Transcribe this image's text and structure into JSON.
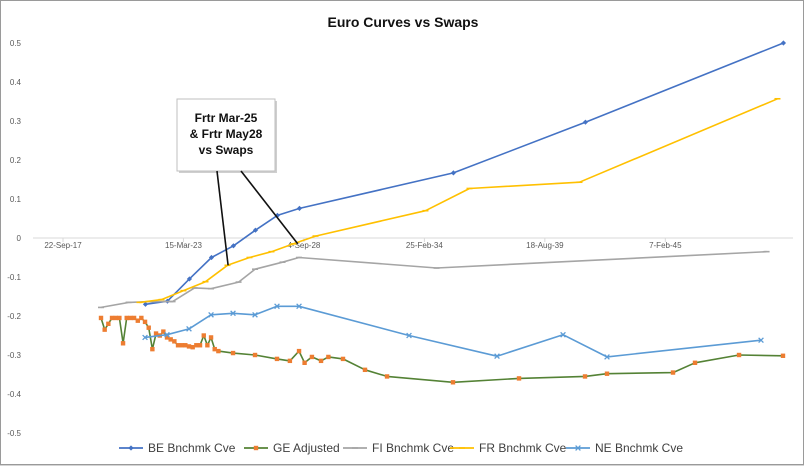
{
  "chart_data": {
    "type": "line",
    "title": "Euro Curves vs Swaps",
    "xlabel": "",
    "ylabel": "",
    "x_domain": [
      "2017-09-22",
      "2050-06-15"
    ],
    "ylim": [
      -0.5,
      0.5
    ],
    "y_ticks": [
      0.5,
      0.4,
      0.3,
      0.2,
      0.1,
      0,
      -0.1,
      -0.2,
      -0.3,
      -0.4,
      -0.5
    ],
    "x_ticks": [
      {
        "date": "2017-09-22",
        "label": "22-Sep-17"
      },
      {
        "date": "2023-03-15",
        "label": "15-Mar-23"
      },
      {
        "date": "2028-09-04",
        "label": "4-Sep-28"
      },
      {
        "date": "2034-02-25",
        "label": "25-Feb-34"
      },
      {
        "date": "2039-08-18",
        "label": "18-Aug-39"
      },
      {
        "date": "2045-02-07",
        "label": "7-Feb-45"
      }
    ],
    "grid": false,
    "legend_position": "bottom",
    "annotation": {
      "lines": [
        "Frtr Mar-25",
        "& Frtr May28",
        "vs Swaps"
      ],
      "pointers": [
        {
          "date": "2025-03-25",
          "value": -0.07
        },
        {
          "date": "2028-05-25",
          "value": -0.015
        }
      ]
    },
    "series": [
      {
        "name": "BE Bnchmk Cve",
        "color": "#4472c4",
        "marker": "diamond",
        "points": [
          [
            "2021-06-22",
            -0.17
          ],
          [
            "2022-06-22",
            -0.162
          ],
          [
            "2023-06-22",
            -0.105
          ],
          [
            "2024-06-22",
            -0.05
          ],
          [
            "2025-06-22",
            -0.02
          ],
          [
            "2026-06-22",
            0.02
          ],
          [
            "2027-06-22",
            0.058
          ],
          [
            "2028-06-22",
            0.076
          ],
          [
            "2035-06-22",
            0.167
          ],
          [
            "2041-06-22",
            0.297
          ],
          [
            "2050-06-22",
            0.5
          ]
        ]
      },
      {
        "name": "GE Adjusted",
        "color": "#ed7d31",
        "line_color": "#548235",
        "marker": "square",
        "points": [
          [
            "2019-06-15",
            -0.205
          ],
          [
            "2019-08-15",
            -0.235
          ],
          [
            "2019-10-15",
            -0.22
          ],
          [
            "2019-12-15",
            -0.205
          ],
          [
            "2020-02-15",
            -0.205
          ],
          [
            "2020-04-15",
            -0.205
          ],
          [
            "2020-06-15",
            -0.27
          ],
          [
            "2020-08-15",
            -0.205
          ],
          [
            "2020-10-15",
            -0.205
          ],
          [
            "2020-12-15",
            -0.205
          ],
          [
            "2021-02-15",
            -0.212
          ],
          [
            "2021-04-15",
            -0.205
          ],
          [
            "2021-06-15",
            -0.215
          ],
          [
            "2021-08-15",
            -0.23
          ],
          [
            "2021-10-15",
            -0.285
          ],
          [
            "2021-12-15",
            -0.245
          ],
          [
            "2022-02-15",
            -0.25
          ],
          [
            "2022-04-15",
            -0.24
          ],
          [
            "2022-06-15",
            -0.255
          ],
          [
            "2022-08-15",
            -0.26
          ],
          [
            "2022-10-15",
            -0.265
          ],
          [
            "2022-12-15",
            -0.275
          ],
          [
            "2023-02-15",
            -0.275
          ],
          [
            "2023-04-15",
            -0.275
          ],
          [
            "2023-06-15",
            -0.278
          ],
          [
            "2023-08-15",
            -0.28
          ],
          [
            "2023-10-15",
            -0.275
          ],
          [
            "2023-12-15",
            -0.275
          ],
          [
            "2024-02-15",
            -0.25
          ],
          [
            "2024-04-15",
            -0.275
          ],
          [
            "2024-06-15",
            -0.255
          ],
          [
            "2024-08-15",
            -0.285
          ],
          [
            "2024-10-15",
            -0.29
          ],
          [
            "2025-06-15",
            -0.295
          ],
          [
            "2026-06-15",
            -0.3
          ],
          [
            "2027-06-15",
            -0.31
          ],
          [
            "2028-01-15",
            -0.315
          ],
          [
            "2028-06-15",
            -0.29
          ],
          [
            "2028-09-15",
            -0.32
          ],
          [
            "2029-01-15",
            -0.305
          ],
          [
            "2029-06-15",
            -0.315
          ],
          [
            "2029-10-15",
            -0.305
          ],
          [
            "2030-06-15",
            -0.31
          ],
          [
            "2031-06-15",
            -0.338
          ],
          [
            "2032-06-15",
            -0.355
          ],
          [
            "2035-06-15",
            -0.37
          ],
          [
            "2038-06-15",
            -0.36
          ],
          [
            "2041-06-15",
            -0.355
          ],
          [
            "2042-06-15",
            -0.348
          ],
          [
            "2045-06-15",
            -0.345
          ],
          [
            "2046-06-15",
            -0.32
          ],
          [
            "2048-06-15",
            -0.3
          ],
          [
            "2050-06-15",
            -0.302
          ]
        ]
      },
      {
        "name": "FI Bnchmk Cve",
        "color": "#a5a5a5",
        "marker": "dash",
        "points": [
          [
            "2019-06-15",
            -0.178
          ],
          [
            "2020-09-15",
            -0.165
          ],
          [
            "2021-09-15",
            -0.163
          ],
          [
            "2022-09-15",
            -0.163
          ],
          [
            "2023-09-15",
            -0.128
          ],
          [
            "2024-06-15",
            -0.13
          ],
          [
            "2025-09-15",
            -0.113
          ],
          [
            "2026-06-15",
            -0.08
          ],
          [
            "2027-09-15",
            -0.062
          ],
          [
            "2028-06-15",
            -0.05
          ],
          [
            "2034-09-15",
            -0.077
          ],
          [
            "2049-09-15",
            -0.035
          ]
        ]
      },
      {
        "name": "FR Bnchmk Cve",
        "color": "#ffc000",
        "marker": "dash",
        "points": [
          [
            "2021-03-15",
            -0.165
          ],
          [
            "2022-03-15",
            -0.158
          ],
          [
            "2023-03-15",
            -0.135
          ],
          [
            "2024-03-15",
            -0.112
          ],
          [
            "2025-03-15",
            -0.07
          ],
          [
            "2026-03-15",
            -0.05
          ],
          [
            "2027-03-15",
            -0.035
          ],
          [
            "2028-03-15",
            -0.015
          ],
          [
            "2029-03-15",
            0.005
          ],
          [
            "2034-03-15",
            0.07
          ],
          [
            "2036-03-15",
            0.127
          ],
          [
            "2041-03-15",
            0.143
          ],
          [
            "2050-03-15",
            0.357
          ]
        ]
      },
      {
        "name": "NE Bnchmk Cve",
        "color": "#5b9bd5",
        "marker": "x",
        "points": [
          [
            "2021-06-15",
            -0.255
          ],
          [
            "2022-06-15",
            -0.248
          ],
          [
            "2023-06-15",
            -0.233
          ],
          [
            "2024-06-15",
            -0.197
          ],
          [
            "2025-06-15",
            -0.193
          ],
          [
            "2026-06-15",
            -0.197
          ],
          [
            "2027-06-15",
            -0.175
          ],
          [
            "2028-06-15",
            -0.175
          ],
          [
            "2033-06-15",
            -0.25
          ],
          [
            "2037-06-15",
            -0.303
          ],
          [
            "2040-06-15",
            -0.248
          ],
          [
            "2042-06-15",
            -0.305
          ],
          [
            "2049-06-15",
            -0.262
          ]
        ]
      }
    ]
  }
}
